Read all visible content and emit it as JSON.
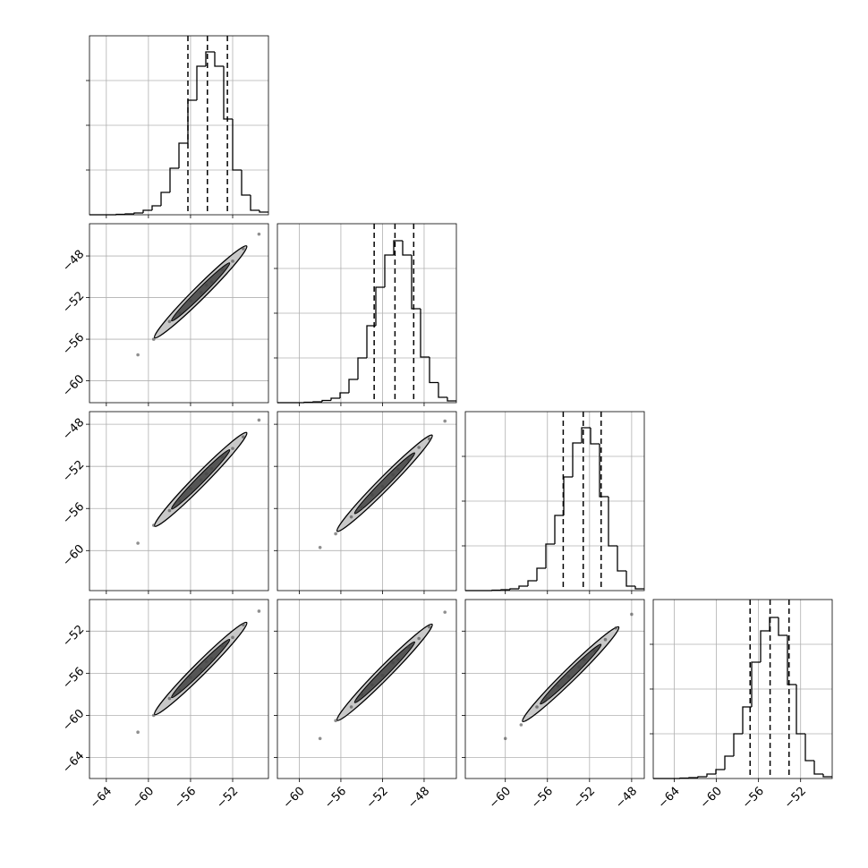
{
  "chart_data": [
    {
      "type": "histogram",
      "xlim": [
        -65.6,
        -48.6
      ],
      "ylim": [
        0,
        4
      ],
      "grid": true,
      "color": "#000000",
      "xtick_labels": false,
      "ytick_labels": false,
      "xticks": [
        {
          "value": -64,
          "label": "−64"
        },
        {
          "value": -60,
          "label": "−60"
        },
        {
          "value": -56,
          "label": "−56"
        },
        {
          "value": -52,
          "label": "−52"
        }
      ],
      "yticks": [
        1,
        2,
        3
      ],
      "bins": [
        -65.6,
        -64.75,
        -63.9,
        -63.05,
        -62.2,
        -61.35,
        -60.5,
        -59.65,
        -58.8,
        -57.95,
        -57.1,
        -56.25,
        -55.4,
        -54.55,
        -53.7,
        -52.85,
        -52.0,
        -51.15,
        -50.3,
        -49.45,
        -48.6
      ],
      "counts": [
        0,
        0,
        0,
        0.01,
        0.02,
        0.04,
        0.1,
        0.2,
        0.5,
        1.04,
        1.6,
        2.56,
        3.32,
        3.64,
        3.32,
        2.14,
        1.0,
        0.44,
        0.1,
        0.06
      ],
      "quantiles": [
        -56.25,
        -54.4,
        -52.5
      ]
    },
    {
      "type": "scatter",
      "xlim": [
        -65.6,
        -48.6
      ],
      "ylim": [
        -62.1,
        -44.9
      ],
      "grid": true,
      "color": "#444444",
      "xtick_labels": false,
      "ytick_labels": true,
      "xticks": [
        {
          "value": -64,
          "label": "−64"
        },
        {
          "value": -60,
          "label": "−60"
        },
        {
          "value": -56,
          "label": "−56"
        },
        {
          "value": -52,
          "label": "−52"
        }
      ],
      "yticks": [
        {
          "value": -60,
          "label": "−60"
        },
        {
          "value": -56,
          "label": "−56"
        },
        {
          "value": -52,
          "label": "−52"
        },
        {
          "value": -48,
          "label": "−48"
        }
      ],
      "x": [
        -61,
        -59.5,
        -58,
        -57,
        -56,
        -55,
        -54.5,
        -54,
        -53,
        -52,
        -51,
        -49.5
      ],
      "y": [
        -57.5,
        -56,
        -54.3,
        -53.5,
        -52.3,
        -51.5,
        -50.8,
        -50.5,
        -49.3,
        -48.5,
        -47.3,
        -45.9
      ]
    },
    {
      "type": "histogram",
      "xlim": [
        -62.1,
        -44.9
      ],
      "ylim": [
        0,
        4
      ],
      "grid": true,
      "color": "#000000",
      "xtick_labels": false,
      "ytick_labels": false,
      "xticks": [
        {
          "value": -60,
          "label": "−60"
        },
        {
          "value": -56,
          "label": "−56"
        },
        {
          "value": -52,
          "label": "−52"
        },
        {
          "value": -48,
          "label": "−48"
        }
      ],
      "yticks": [
        1,
        2,
        3
      ],
      "bins": [
        -62.1,
        -61.24,
        -60.38,
        -59.52,
        -58.66,
        -57.8,
        -56.94,
        -56.08,
        -55.22,
        -54.36,
        -53.5,
        -52.64,
        -51.78,
        -50.92,
        -50.06,
        -49.2,
        -48.34,
        -47.48,
        -46.62,
        -45.76,
        -44.9
      ],
      "counts": [
        0,
        0,
        0,
        0.01,
        0.02,
        0.05,
        0.1,
        0.22,
        0.52,
        1.0,
        1.72,
        2.58,
        3.3,
        3.62,
        3.3,
        2.1,
        1.02,
        0.45,
        0.12,
        0.04
      ],
      "quantiles": [
        -52.8,
        -50.8,
        -49.0
      ]
    },
    {
      "type": "scatter",
      "xlim": [
        -65.6,
        -48.6
      ],
      "ylim": [
        -63.8,
        -46.8
      ],
      "grid": true,
      "color": "#444444",
      "xtick_labels": false,
      "ytick_labels": true,
      "xticks": [
        {
          "value": -64,
          "label": "−64"
        },
        {
          "value": -60,
          "label": "−60"
        },
        {
          "value": -56,
          "label": "−56"
        },
        {
          "value": -52,
          "label": "−52"
        }
      ],
      "yticks": [
        {
          "value": -60,
          "label": "−60"
        },
        {
          "value": -56,
          "label": "−56"
        },
        {
          "value": -52,
          "label": "−52"
        },
        {
          "value": -48,
          "label": "−48"
        }
      ],
      "x": [
        -61,
        -59.5,
        -58,
        -57,
        -56,
        -55,
        -54.5,
        -54,
        -53,
        -52,
        -51,
        -49.5
      ],
      "y": [
        -59.3,
        -57.6,
        -56.2,
        -55.3,
        -54.1,
        -53.3,
        -52.7,
        -52.2,
        -51.1,
        -50.3,
        -49.2,
        -47.6
      ]
    },
    {
      "type": "scatter",
      "xlim": [
        -62.1,
        -44.9
      ],
      "ylim": [
        -63.8,
        -46.8
      ],
      "grid": true,
      "color": "#444444",
      "xtick_labels": false,
      "ytick_labels": false,
      "xticks": [
        {
          "value": -60,
          "label": "−60"
        },
        {
          "value": -56,
          "label": "−56"
        },
        {
          "value": -52,
          "label": "−52"
        },
        {
          "value": -48,
          "label": "−48"
        }
      ],
      "yticks": [
        {
          "value": -60,
          "label": "−60"
        },
        {
          "value": -56,
          "label": "−56"
        },
        {
          "value": -52,
          "label": "−52"
        },
        {
          "value": -48,
          "label": "−48"
        }
      ],
      "x": [
        -58,
        -56.5,
        -55,
        -54,
        -53,
        -52,
        -51,
        -50.5,
        -49.5,
        -48.5,
        -47.5,
        -46
      ],
      "y": [
        -59.7,
        -58.4,
        -56.8,
        -55.9,
        -54.7,
        -53.9,
        -52.8,
        -52.3,
        -51.4,
        -50.2,
        -49.4,
        -47.7
      ]
    },
    {
      "type": "histogram",
      "xlim": [
        -63.8,
        -46.8
      ],
      "ylim": [
        0,
        4
      ],
      "grid": true,
      "color": "#000000",
      "xtick_labels": false,
      "ytick_labels": false,
      "xticks": [
        {
          "value": -60,
          "label": "−60"
        },
        {
          "value": -56,
          "label": "−56"
        },
        {
          "value": -52,
          "label": "−52"
        },
        {
          "value": -48,
          "label": "−48"
        }
      ],
      "yticks": [
        1,
        2,
        3
      ],
      "bins": [
        -63.8,
        -62.95,
        -62.1,
        -61.25,
        -60.4,
        -59.55,
        -58.7,
        -57.85,
        -57.0,
        -56.15,
        -55.3,
        -54.45,
        -53.6,
        -52.75,
        -51.9,
        -51.05,
        -50.2,
        -49.35,
        -48.5,
        -47.65,
        -46.8
      ],
      "counts": [
        0,
        0,
        0,
        0.01,
        0.02,
        0.04,
        0.1,
        0.22,
        0.5,
        1.04,
        1.68,
        2.54,
        3.3,
        3.64,
        3.28,
        2.1,
        1.0,
        0.44,
        0.1,
        0.04
      ],
      "quantiles": [
        -54.5,
        -52.6,
        -50.9
      ]
    },
    {
      "type": "scatter",
      "xlim": [
        -65.6,
        -48.6
      ],
      "ylim": [
        -66.0,
        -49.0
      ],
      "grid": true,
      "color": "#444444",
      "xtick_labels": true,
      "ytick_labels": true,
      "xticks": [
        {
          "value": -64,
          "label": "−64"
        },
        {
          "value": -60,
          "label": "−60"
        },
        {
          "value": -56,
          "label": "−56"
        },
        {
          "value": -52,
          "label": "−52"
        }
      ],
      "yticks": [
        {
          "value": -64,
          "label": "−64"
        },
        {
          "value": -60,
          "label": "−60"
        },
        {
          "value": -56,
          "label": "−56"
        },
        {
          "value": -52,
          "label": "−52"
        }
      ],
      "x": [
        -61,
        -59.5,
        -58,
        -57,
        -56,
        -55,
        -54.5,
        -54,
        -53,
        -52,
        -51,
        -49.5
      ],
      "y": [
        -61.6,
        -60,
        -58.4,
        -57.6,
        -56.4,
        -55.6,
        -54.9,
        -54.6,
        -53.4,
        -52.6,
        -51.4,
        -50.1
      ]
    },
    {
      "type": "scatter",
      "xlim": [
        -62.1,
        -44.9
      ],
      "ylim": [
        -66.0,
        -49.0
      ],
      "grid": true,
      "color": "#444444",
      "xtick_labels": true,
      "ytick_labels": false,
      "xticks": [
        {
          "value": -60,
          "label": "−60"
        },
        {
          "value": -56,
          "label": "−56"
        },
        {
          "value": -52,
          "label": "−52"
        },
        {
          "value": -48,
          "label": "−48"
        }
      ],
      "yticks": [
        {
          "value": -64,
          "label": "−64"
        },
        {
          "value": -60,
          "label": "−60"
        },
        {
          "value": -56,
          "label": "−56"
        },
        {
          "value": -52,
          "label": "−52"
        }
      ],
      "x": [
        -58,
        -56.5,
        -55,
        -54,
        -53,
        -52,
        -51,
        -50.5,
        -49.5,
        -48.5,
        -47.5,
        -46
      ],
      "y": [
        -62.2,
        -60.5,
        -59.2,
        -58.0,
        -57.1,
        -56.2,
        -55.0,
        -54.7,
        -53.5,
        -52.7,
        -51.6,
        -50.2
      ]
    },
    {
      "type": "scatter",
      "xlim": [
        -63.8,
        -46.8
      ],
      "ylim": [
        -66.0,
        -49.0
      ],
      "grid": true,
      "color": "#444444",
      "xtick_labels": true,
      "ytick_labels": false,
      "xticks": [
        {
          "value": -60,
          "label": "−60"
        },
        {
          "value": -56,
          "label": "−56"
        },
        {
          "value": -52,
          "label": "−52"
        },
        {
          "value": -48,
          "label": "−48"
        }
      ],
      "yticks": [
        {
          "value": -64,
          "label": "−64"
        },
        {
          "value": -60,
          "label": "−60"
        },
        {
          "value": -56,
          "label": "−56"
        },
        {
          "value": -52,
          "label": "−52"
        }
      ],
      "x": [
        -60,
        -58.5,
        -57,
        -56,
        -55,
        -54,
        -53,
        -52.5,
        -51.5,
        -50.5,
        -49.5,
        -48
      ],
      "y": [
        -62.2,
        -60.9,
        -59.2,
        -58.4,
        -57.2,
        -56.3,
        -55.4,
        -54.7,
        -53.9,
        -52.8,
        -51.7,
        -50.4
      ]
    },
    {
      "type": "histogram",
      "xlim": [
        -66.0,
        -49.0
      ],
      "ylim": [
        0,
        4
      ],
      "grid": true,
      "color": "#000000",
      "xtick_labels": true,
      "ytick_labels": false,
      "xticks": [
        {
          "value": -64,
          "label": "−64"
        },
        {
          "value": -60,
          "label": "−60"
        },
        {
          "value": -56,
          "label": "−56"
        },
        {
          "value": -52,
          "label": "−52"
        }
      ],
      "yticks": [
        1,
        2,
        3
      ],
      "bins": [
        -66.0,
        -65.15,
        -64.3,
        -63.45,
        -62.6,
        -61.75,
        -60.9,
        -60.05,
        -59.2,
        -58.35,
        -57.5,
        -56.65,
        -55.8,
        -54.95,
        -54.1,
        -53.25,
        -52.4,
        -51.55,
        -50.7,
        -49.85,
        -49.0
      ],
      "counts": [
        0,
        0,
        0,
        0.01,
        0.02,
        0.04,
        0.1,
        0.2,
        0.5,
        1.0,
        1.6,
        2.6,
        3.3,
        3.6,
        3.2,
        2.1,
        1.0,
        0.4,
        0.1,
        0.04
      ],
      "quantiles": [
        -56.8,
        -54.9,
        -53.1
      ]
    }
  ]
}
